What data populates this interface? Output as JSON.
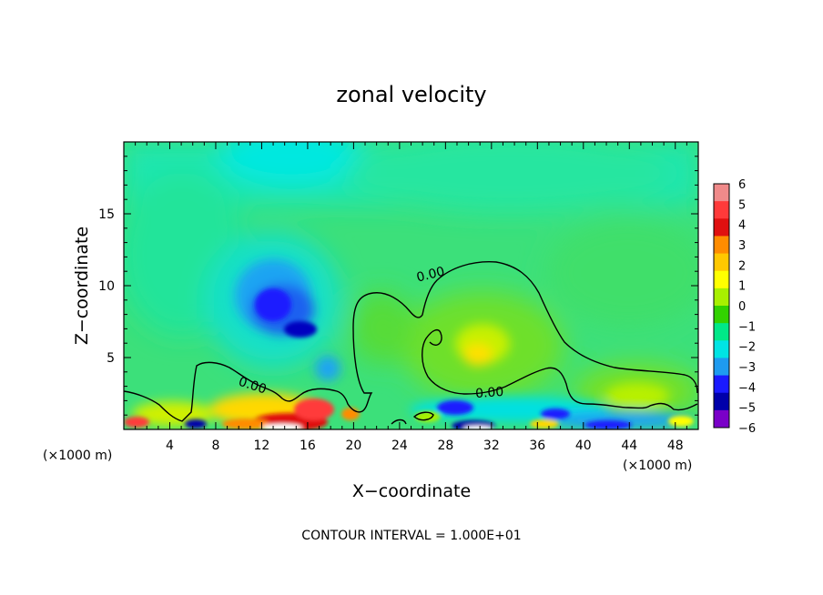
{
  "chart_data": {
    "type": "heatmap",
    "title": "zonal velocity",
    "xlabel": "X−coordinate",
    "ylabel": "Z−coordinate",
    "x_unit": "(×1000 m)",
    "z_unit": "(×1000 m)",
    "xlim": [
      0,
      50
    ],
    "ylim": [
      0,
      20
    ],
    "x_ticks": [
      4,
      8,
      12,
      16,
      20,
      24,
      28,
      32,
      36,
      40,
      44,
      48
    ],
    "y_ticks": [
      5,
      10,
      15
    ],
    "colorbar": {
      "levels": [
        6,
        5,
        4,
        3,
        2,
        1,
        0,
        -1,
        -2,
        -3,
        -4,
        -5,
        -6
      ],
      "labels": [
        "6",
        "5",
        "4",
        "3",
        "2",
        "1",
        "0",
        "−1",
        "−2",
        "−3",
        "−4",
        "−5",
        "−6"
      ],
      "colors": [
        "#f08a8a",
        "#ff3a3a",
        "#e01010",
        "#ff8c00",
        "#ffc800",
        "#ffff00",
        "#a8f000",
        "#32d200",
        "#00e888",
        "#00e4e4",
        "#1e9bf0",
        "#1a1aff",
        "#0000aa",
        "#7a00c8"
      ]
    },
    "contour_label": "0.00",
    "contour_interval_text": "CONTOUR INTERVAL = 1.000E+01",
    "features": [
      {
        "x": 13.5,
        "z": 8.5,
        "value": -4.5
      },
      {
        "x": 15.0,
        "z": 7.0,
        "value": -5.0
      },
      {
        "x": 17.5,
        "z": 4.5,
        "value": -3.5
      },
      {
        "x": 15.0,
        "z": 0.5,
        "value": 5.0
      },
      {
        "x": 12.0,
        "z": 0.4,
        "value": 6.0
      },
      {
        "x": 30.5,
        "z": 5.5,
        "value": 2.0
      },
      {
        "x": 30.0,
        "z": 0.4,
        "value": -5.5
      },
      {
        "x": 38.0,
        "z": 1.0,
        "value": -4.0
      },
      {
        "x": 45.0,
        "z": 2.5,
        "value": 1.5
      },
      {
        "x": 14.5,
        "z": 19.5,
        "value": -2.5
      }
    ]
  },
  "colors": {
    "background_field": "#3ce07a",
    "contour_line": "#000000"
  }
}
